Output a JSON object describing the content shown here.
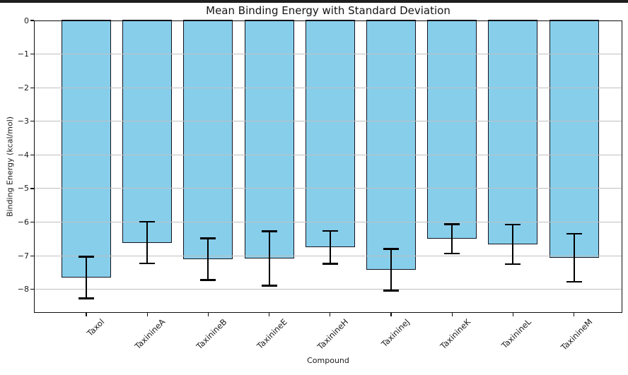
{
  "figure": {
    "background": "#ffffff",
    "top_border_color": "#1e1e1e"
  },
  "chart_data": {
    "type": "bar",
    "title": "Mean Binding Energy with Standard Deviation",
    "xlabel": "Compound",
    "ylabel": "Binding Energy (kcal/mol)",
    "categories": [
      "Taxol",
      "TaxinineA",
      "TaxinineB",
      "TaxinineE",
      "TaxinineH",
      "TaxinineJ",
      "TaxinineK",
      "TaxinineL",
      "TaxinineM"
    ],
    "series": [
      {
        "name": "Mean binding energy (kcal/mol)",
        "values": [
          -7.65,
          -6.61,
          -7.1,
          -7.08,
          -6.75,
          -7.42,
          -6.5,
          -6.66,
          -7.06
        ],
        "errors": [
          0.62,
          0.62,
          0.62,
          0.81,
          0.49,
          0.62,
          0.44,
          0.59,
          0.71
        ]
      }
    ],
    "ylim": [
      -8.7,
      0
    ],
    "yticks": [
      0,
      -1,
      -2,
      -3,
      -4,
      -5,
      -6,
      -7,
      -8
    ],
    "yticklabels": [
      "0",
      "−1",
      "−2",
      "−3",
      "−4",
      "−5",
      "−6",
      "−7",
      "−8"
    ],
    "grid": true,
    "grid_axis": "y",
    "grid_over_bars": true,
    "legend": "none",
    "bar_color": "#87CEEB",
    "bar_edge_color": "#13131f",
    "error_color": "#000000",
    "grid_color": "#c0c0c0",
    "xtick_rotation_deg": 45
  }
}
